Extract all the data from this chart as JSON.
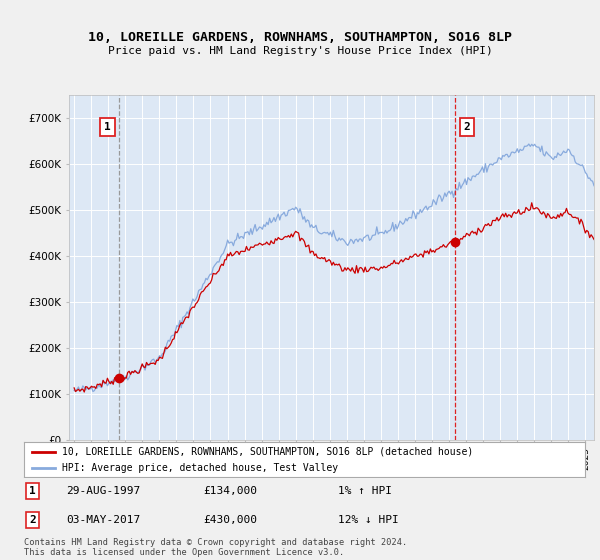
{
  "title": "10, LOREILLE GARDENS, ROWNHAMS, SOUTHAMPTON, SO16 8LP",
  "subtitle": "Price paid vs. HM Land Registry's House Price Index (HPI)",
  "ylim": [
    0,
    750000
  ],
  "yticks": [
    0,
    100000,
    200000,
    300000,
    400000,
    500000,
    600000,
    700000
  ],
  "ytick_labels": [
    "£0",
    "£100K",
    "£200K",
    "£300K",
    "£400K",
    "£500K",
    "£600K",
    "£700K"
  ],
  "bg_color": "#f0f0f0",
  "plot_bg_color": "#dde8f5",
  "legend_label_red": "10, LOREILLE GARDENS, ROWNHAMS, SOUTHAMPTON, SO16 8LP (detached house)",
  "legend_label_blue": "HPI: Average price, detached house, Test Valley",
  "annotation1_label": "1",
  "annotation1_date": "29-AUG-1997",
  "annotation1_price": "£134,000",
  "annotation1_hpi": "1% ↑ HPI",
  "annotation1_year": 1997.66,
  "annotation1_value": 134000,
  "annotation2_label": "2",
  "annotation2_date": "03-MAY-2017",
  "annotation2_price": "£430,000",
  "annotation2_hpi": "12% ↓ HPI",
  "annotation2_year": 2017.34,
  "annotation2_value": 430000,
  "footer": "Contains HM Land Registry data © Crown copyright and database right 2024.\nThis data is licensed under the Open Government Licence v3.0.",
  "red_color": "#cc0000",
  "blue_color": "#88aadd",
  "line1_color": "#999999",
  "line2_color": "#dd2222",
  "xmin": 1995.0,
  "xmax": 2025.5
}
